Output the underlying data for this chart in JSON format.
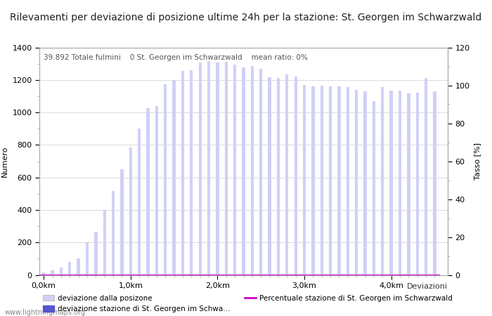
{
  "title": "Rilevamenti per deviazione di posizione ultime 24h per la stazione: St. Georgen im Schwarzwald",
  "subtitle": "39.892 Totale fulmini    0 St. Georgen im Schwarzwald    mean ratio: 0%",
  "xlabel": "Deviazioni",
  "ylabel_left": "Numero",
  "ylabel_right": "Tasso [%]",
  "xlim": [
    -0.5,
    46.5
  ],
  "ylim_left": [
    0,
    1400
  ],
  "ylim_right": [
    0,
    120
  ],
  "xtick_positions": [
    0,
    10,
    20,
    30,
    40
  ],
  "xtick_labels": [
    "0,0km",
    "1,0km",
    "2,0km",
    "3,0km",
    "4,0km"
  ],
  "ytick_left": [
    0,
    200,
    400,
    600,
    800,
    1000,
    1200,
    1400
  ],
  "ytick_right": [
    0,
    20,
    40,
    60,
    80,
    100,
    120
  ],
  "bar_positions": [
    0,
    1,
    2,
    3,
    4,
    5,
    6,
    7,
    8,
    9,
    10,
    11,
    12,
    13,
    14,
    15,
    16,
    17,
    18,
    19,
    20,
    21,
    22,
    23,
    24,
    25,
    26,
    27,
    28,
    29,
    30,
    31,
    32,
    33,
    34,
    35,
    36,
    37,
    38,
    39,
    40,
    41,
    42,
    43,
    44,
    45
  ],
  "bar_heights": [
    15,
    30,
    45,
    80,
    100,
    200,
    265,
    400,
    515,
    650,
    785,
    900,
    1025,
    1040,
    1175,
    1200,
    1255,
    1260,
    1305,
    1315,
    1305,
    1310,
    1295,
    1275,
    1285,
    1270,
    1215,
    1210,
    1235,
    1220,
    1170,
    1160,
    1165,
    1160,
    1160,
    1155,
    1140,
    1130,
    1070,
    1155,
    1135,
    1135,
    1115,
    1120,
    1210,
    1130
  ],
  "station_bar_heights": [
    0,
    0,
    0,
    0,
    0,
    0,
    0,
    0,
    0,
    0,
    0,
    0,
    0,
    0,
    0,
    0,
    0,
    0,
    0,
    0,
    0,
    0,
    0,
    0,
    0,
    0,
    0,
    0,
    0,
    0,
    0,
    0,
    0,
    0,
    0,
    0,
    0,
    0,
    0,
    0,
    0,
    0,
    0,
    0,
    0,
    0
  ],
  "bar_color": "#d0d0f8",
  "station_bar_color": "#5555cc",
  "line_color": "#cc00cc",
  "line_y": 0,
  "background_color": "#ffffff",
  "grid_color": "#cccccc",
  "title_fontsize": 10,
  "axis_fontsize": 8,
  "tick_fontsize": 8,
  "bar_width": 0.35,
  "watermark": "www.lightningmaps.org",
  "legend1_label": "deviazione dalla posizone",
  "legend2_label": "deviazione stazione di St. Georgen im Schwa...",
  "legend3_label": "Percentuale stazione di St. Georgen im Schwarzwald"
}
